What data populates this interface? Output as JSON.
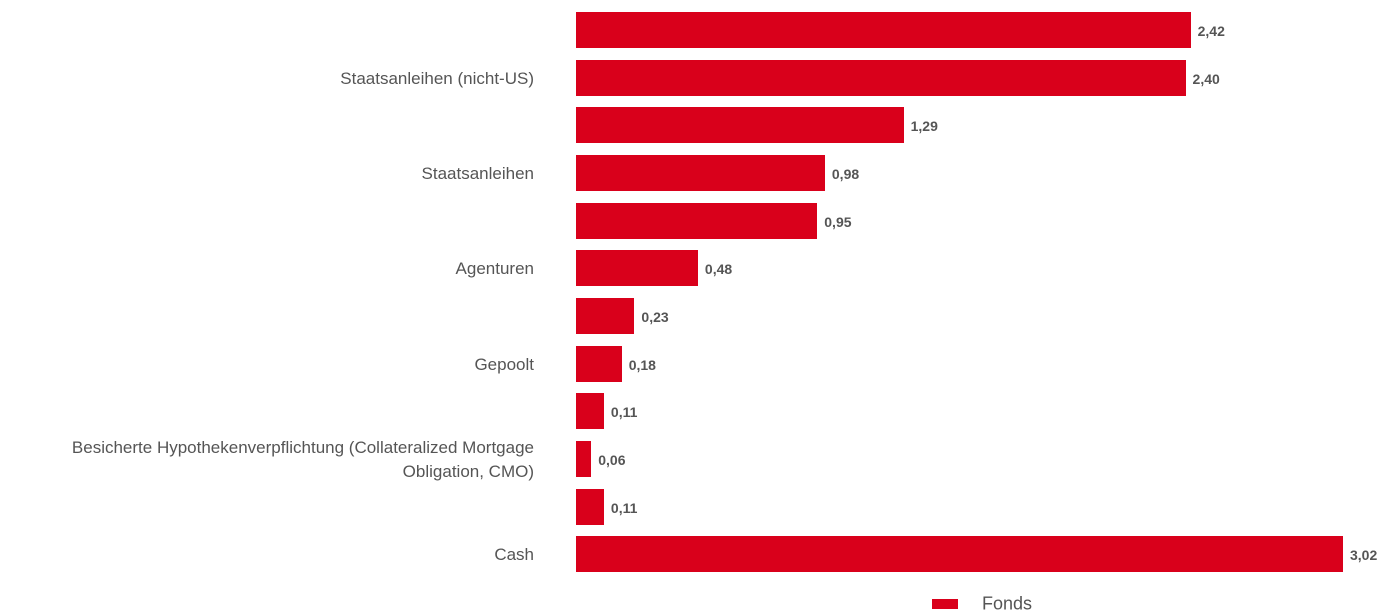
{
  "chart_data": {
    "type": "bar",
    "orientation": "horizontal",
    "categories": [
      null,
      "Staatsanleihen (nicht-US)",
      null,
      "Staatsanleihen",
      null,
      "Agenturen",
      null,
      "Gepoolt",
      null,
      "Besicherte Hypothekenverpflichtung (Collateralized Mortgage Obligation, CMO)",
      null,
      "Cash"
    ],
    "series": [
      {
        "name": "Fonds",
        "color": "#d9001b",
        "values": [
          2.42,
          2.4,
          1.29,
          0.98,
          0.95,
          0.48,
          0.23,
          0.18,
          0.11,
          0.06,
          0.11,
          3.02
        ],
        "value_labels": [
          "2,42",
          "2,40",
          "1,29",
          "0,98",
          "0,95",
          "0,48",
          "0,23",
          "0,18",
          "0,11",
          "0,06",
          "0,11",
          "3,02"
        ]
      }
    ],
    "legend": "bottom"
  }
}
